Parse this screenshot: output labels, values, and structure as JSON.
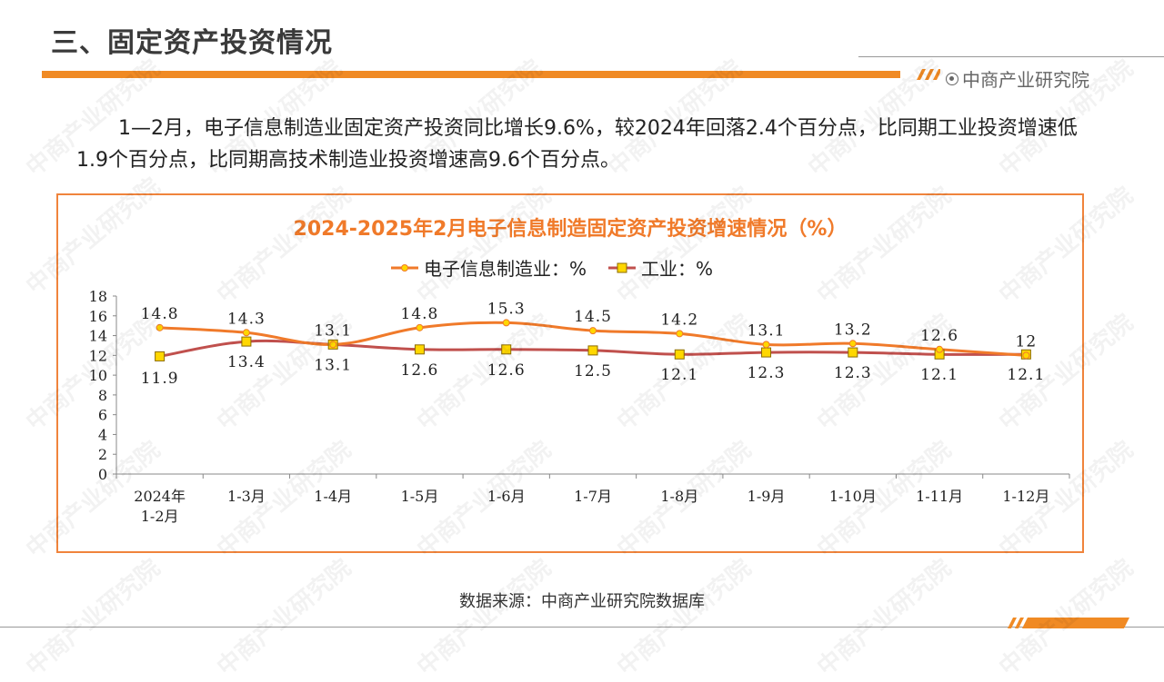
{
  "page": {
    "title": "三、固定资产投资情况",
    "brand": "中商产业研究院",
    "paragraph": "1—2月，电子信息制造业固定资产投资同比增长9.6%，较2024年回落2.4个百分点，比同期工业投资增速低1.9个百分点，比同期高技术制造业投资增速高9.6个百分点。",
    "source": "数据来源：中商产业研究院数据库",
    "watermark": "中商产业研究院"
  },
  "colors": {
    "accent": "#f08a24",
    "series1": "#f07a2a",
    "series2": "#c0504d",
    "marker2_fill": "#ffd700"
  },
  "chart_data": {
    "type": "line",
    "title": "2024-2025年2月电子信息制造固定资产投资增速情况（%）",
    "categories": [
      "2024年\n1-2月",
      "1-3月",
      "1-4月",
      "1-5月",
      "1-6月",
      "1-7月",
      "1-8月",
      "1-9月",
      "1-10月",
      "1-11月",
      "1-12月"
    ],
    "series": [
      {
        "name": "电子信息制造业：%",
        "values": [
          14.8,
          14.3,
          13.1,
          14.8,
          15.3,
          14.5,
          14.2,
          13.1,
          13.2,
          12.6,
          12
        ],
        "labels": [
          "14.8",
          "14.3",
          "13.1",
          "14.8",
          "15.3",
          "14.5",
          "14.2",
          "13.1",
          "13.2",
          "12.6",
          "12"
        ]
      },
      {
        "name": "工业：%",
        "values": [
          11.9,
          13.4,
          13.1,
          12.6,
          12.6,
          12.5,
          12.1,
          12.3,
          12.3,
          12.1,
          12.1
        ],
        "labels": [
          "11.9",
          "13.4",
          "13.1",
          "12.6",
          "12.6",
          "12.5",
          "12.1",
          "12.3",
          "12.3",
          "12.1",
          "12.1"
        ]
      }
    ],
    "ylim": [
      0,
      18
    ],
    "yticks": [
      "0",
      "2",
      "4",
      "6",
      "8",
      "10",
      "12",
      "14",
      "16",
      "18"
    ],
    "grid": false,
    "legend_position": "top"
  }
}
